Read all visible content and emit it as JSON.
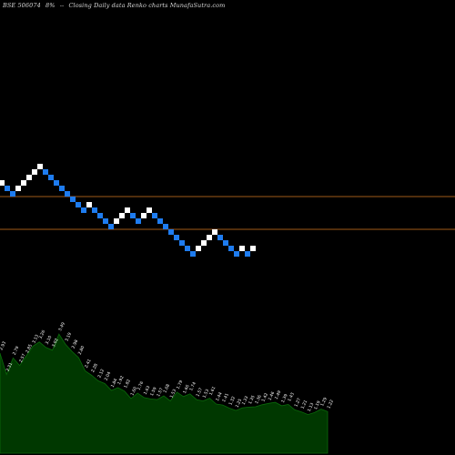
{
  "header": {
    "symbol": "BSE 506074",
    "change": "8%",
    "arrow": "--",
    "desc": "Closing Daily data  Renko  charts MunafaSutra.com"
  },
  "chart_data": {
    "type": "renko",
    "title": "BSE 506074 8% -- Closing Daily data Renko charts MunafaSutra.com",
    "colors": {
      "up": "#ffffff",
      "down": "#1e7cf0",
      "reference_line": "#a05a18",
      "volume_fill": "#003800",
      "volume_line": "#0a6a0a",
      "volume_label": "#ffffff"
    },
    "bricks": [
      {
        "dir": "up",
        "level": 63
      },
      {
        "dir": "down",
        "level": 62
      },
      {
        "dir": "down",
        "level": 61
      },
      {
        "dir": "up",
        "level": 62
      },
      {
        "dir": "up",
        "level": 63
      },
      {
        "dir": "up",
        "level": 64
      },
      {
        "dir": "up",
        "level": 65
      },
      {
        "dir": "up",
        "level": 66
      },
      {
        "dir": "down",
        "level": 65
      },
      {
        "dir": "down",
        "level": 64
      },
      {
        "dir": "down",
        "level": 63
      },
      {
        "dir": "down",
        "level": 62
      },
      {
        "dir": "down",
        "level": 61
      },
      {
        "dir": "down",
        "level": 60
      },
      {
        "dir": "down",
        "level": 59
      },
      {
        "dir": "down",
        "level": 58
      },
      {
        "dir": "up",
        "level": 59
      },
      {
        "dir": "down",
        "level": 58
      },
      {
        "dir": "down",
        "level": 57
      },
      {
        "dir": "down",
        "level": 56
      },
      {
        "dir": "down",
        "level": 55
      },
      {
        "dir": "up",
        "level": 56
      },
      {
        "dir": "up",
        "level": 57
      },
      {
        "dir": "up",
        "level": 58
      },
      {
        "dir": "down",
        "level": 57
      },
      {
        "dir": "down",
        "level": 56
      },
      {
        "dir": "up",
        "level": 57
      },
      {
        "dir": "up",
        "level": 58
      },
      {
        "dir": "down",
        "level": 57
      },
      {
        "dir": "down",
        "level": 56
      },
      {
        "dir": "down",
        "level": 55
      },
      {
        "dir": "down",
        "level": 54
      },
      {
        "dir": "down",
        "level": 53
      },
      {
        "dir": "down",
        "level": 52
      },
      {
        "dir": "down",
        "level": 51
      },
      {
        "dir": "down",
        "level": 50
      },
      {
        "dir": "up",
        "level": 51
      },
      {
        "dir": "up",
        "level": 52
      },
      {
        "dir": "up",
        "level": 53
      },
      {
        "dir": "up",
        "level": 54
      },
      {
        "dir": "down",
        "level": 53
      },
      {
        "dir": "down",
        "level": 52
      },
      {
        "dir": "down",
        "level": 51
      },
      {
        "dir": "down",
        "level": 50
      },
      {
        "dir": "up",
        "level": 51
      },
      {
        "dir": "down",
        "level": 50
      },
      {
        "dir": "up",
        "level": 51
      }
    ],
    "volume_labels": [
      "2.93",
      "2.31",
      "2.79",
      "2.57",
      "2.85",
      "3.13",
      "3.26",
      "3.10",
      "3.02",
      "3.49",
      "3.19",
      "2.98",
      "2.80",
      "2.41",
      "2.28",
      "2.12",
      "2.04",
      "1.84",
      "1.92",
      "1.82",
      "1.60",
      "1.76",
      "1.63",
      "1.59",
      "1.57",
      "1.68",
      "1.53",
      "1.79",
      "1.66",
      "1.74",
      "1.57",
      "1.53",
      "1.61",
      "1.44",
      "1.41",
      "1.32",
      "1.25",
      "1.33",
      "1.35",
      "1.36",
      "1.42",
      "1.46",
      "1.49",
      "1.39",
      "1.43",
      "1.27",
      "1.21",
      "1.13",
      "1.19",
      "1.29",
      "1.22"
    ],
    "volume_values": [
      2.93,
      2.31,
      2.79,
      2.57,
      2.85,
      3.13,
      3.26,
      3.1,
      3.02,
      3.49,
      3.19,
      2.98,
      2.8,
      2.41,
      2.28,
      2.12,
      2.04,
      1.84,
      1.92,
      1.82,
      1.6,
      1.76,
      1.63,
      1.59,
      1.57,
      1.68,
      1.53,
      1.79,
      1.66,
      1.74,
      1.57,
      1.53,
      1.61,
      1.44,
      1.41,
      1.32,
      1.25,
      1.33,
      1.35,
      1.36,
      1.42,
      1.46,
      1.49,
      1.39,
      1.43,
      1.27,
      1.21,
      1.13,
      1.19,
      1.29,
      1.22
    ]
  }
}
